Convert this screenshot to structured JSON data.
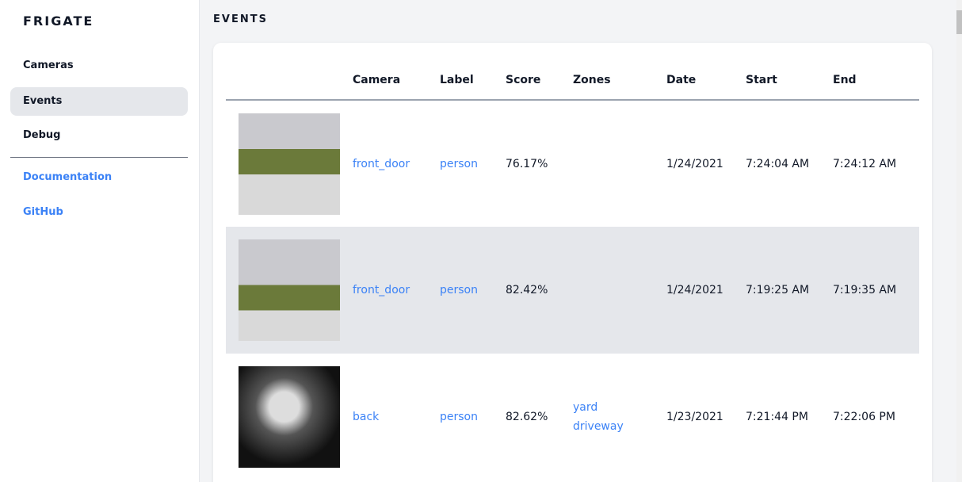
{
  "sidebar": {
    "logo": "FRIGATE",
    "items": [
      {
        "label": "Cameras"
      },
      {
        "label": "Events"
      },
      {
        "label": "Debug"
      }
    ],
    "links": [
      {
        "label": "Documentation"
      },
      {
        "label": "GitHub"
      }
    ]
  },
  "page": {
    "title": "EVENTS"
  },
  "table": {
    "headers": [
      "",
      "Camera",
      "Label",
      "Score",
      "Zones",
      "Date",
      "Start",
      "End"
    ],
    "rows": [
      {
        "camera": "front_door",
        "label": "person",
        "score": "76.17%",
        "zones": [
          "",
          ""
        ],
        "date": "1/24/2021",
        "start": "7:24:04 AM",
        "end": "7:24:12 AM"
      },
      {
        "camera": "front_door",
        "label": "person",
        "score": "82.42%",
        "zones": [
          "",
          ""
        ],
        "date": "1/24/2021",
        "start": "7:19:25 AM",
        "end": "7:19:35 AM"
      },
      {
        "camera": "back",
        "label": "person",
        "score": "82.62%",
        "zones": [
          "yard",
          "driveway"
        ],
        "date": "1/23/2021",
        "start": "7:21:44 PM",
        "end": "7:22:06 PM"
      }
    ]
  },
  "colors": {
    "accent": "#3b82f6",
    "active_bg": "#e5e7eb"
  }
}
